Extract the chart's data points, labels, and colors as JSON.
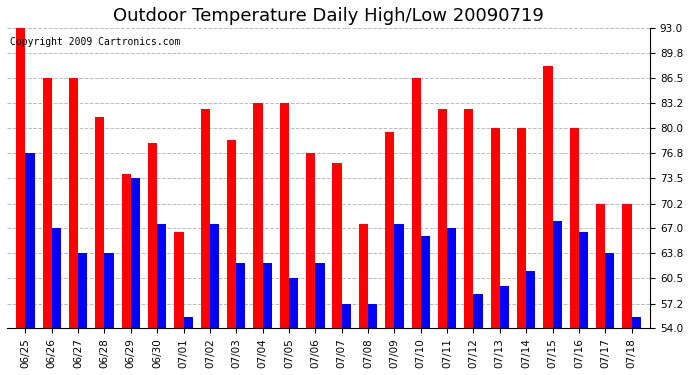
{
  "title": "Outdoor Temperature Daily High/Low 20090719",
  "copyright": "Copyright 2009 Cartronics.com",
  "dates": [
    "06/25",
    "06/26",
    "06/27",
    "06/28",
    "06/29",
    "06/30",
    "07/01",
    "07/02",
    "07/03",
    "07/04",
    "07/05",
    "07/06",
    "07/07",
    "07/08",
    "07/09",
    "07/10",
    "07/11",
    "07/12",
    "07/13",
    "07/14",
    "07/15",
    "07/16",
    "07/17",
    "07/18"
  ],
  "highs": [
    93.0,
    86.5,
    86.5,
    81.5,
    74.0,
    78.0,
    66.5,
    82.5,
    78.5,
    83.2,
    83.2,
    76.8,
    75.5,
    67.5,
    79.5,
    86.5,
    82.5,
    82.5,
    80.0,
    80.0,
    88.0,
    80.0,
    70.2,
    70.2
  ],
  "lows": [
    76.8,
    67.0,
    63.8,
    63.8,
    73.5,
    67.5,
    55.5,
    67.5,
    62.5,
    62.5,
    60.5,
    62.5,
    57.2,
    57.2,
    67.5,
    66.0,
    67.0,
    58.5,
    59.5,
    61.5,
    68.0,
    66.5,
    63.8,
    55.5
  ],
  "high_color": "#ff0000",
  "low_color": "#0000ff",
  "bg_color": "#ffffff",
  "grid_color": "#aaaaaa",
  "ylim_min": 54.0,
  "ylim_max": 93.0,
  "yticks": [
    54.0,
    57.2,
    60.5,
    63.8,
    67.0,
    70.2,
    73.5,
    76.8,
    80.0,
    83.2,
    86.5,
    89.8,
    93.0
  ],
  "bar_width": 0.35,
  "title_fontsize": 13,
  "tick_fontsize": 7.5,
  "copyright_fontsize": 7
}
